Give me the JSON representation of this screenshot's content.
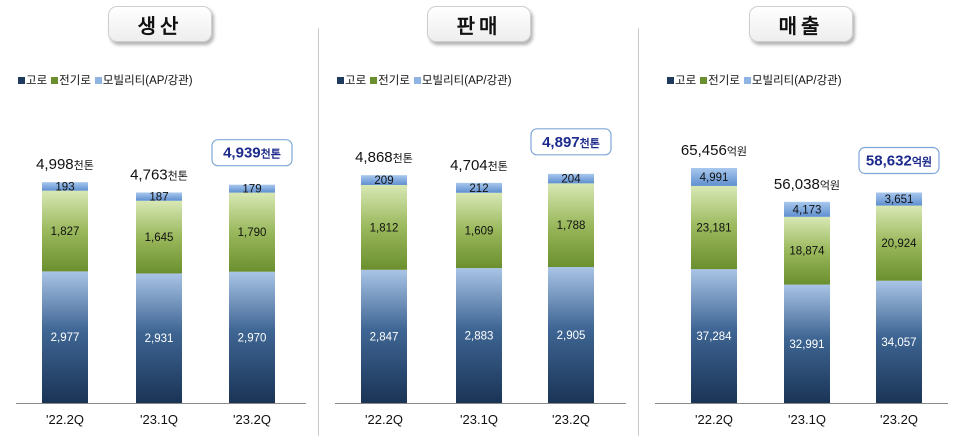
{
  "legend": {
    "items": [
      {
        "label": "고로",
        "color": "#1f3a5f"
      },
      {
        "label": "전기로",
        "color": "#6b8f2e"
      },
      {
        "label": "모빌리티(AP/강관)",
        "color": "#8eb4e3"
      }
    ]
  },
  "chart_data": [
    {
      "type": "bar",
      "title": "생산",
      "categories": [
        "'22.2Q",
        "'23.1Q",
        "'23.2Q"
      ],
      "unit": "천톤",
      "series": [
        {
          "name": "고로",
          "values": [
            2977,
            2931,
            2970
          ]
        },
        {
          "name": "전기로",
          "values": [
            1827,
            1645,
            1790
          ]
        },
        {
          "name": "모빌리티(AP/강관)",
          "values": [
            193,
            187,
            179
          ]
        }
      ],
      "value_labels": [
        [
          "2,977",
          "1,827",
          "193"
        ],
        [
          "2,931",
          "1,645",
          "187"
        ],
        [
          "2,970",
          "1,790",
          "179"
        ]
      ],
      "totals": [
        "4,998",
        "4,763",
        "4,939"
      ],
      "highlight_index": 2
    },
    {
      "type": "bar",
      "title": "판매",
      "categories": [
        "'22.2Q",
        "'23.1Q",
        "'23.2Q"
      ],
      "unit": "천톤",
      "series": [
        {
          "name": "고로",
          "values": [
            2847,
            2883,
            2905
          ]
        },
        {
          "name": "전기로",
          "values": [
            1812,
            1609,
            1788
          ]
        },
        {
          "name": "모빌리티(AP/강관)",
          "values": [
            209,
            212,
            204
          ]
        }
      ],
      "value_labels": [
        [
          "2,847",
          "1,812",
          "209"
        ],
        [
          "2,883",
          "1,609",
          "212"
        ],
        [
          "2,905",
          "1,788",
          "204"
        ]
      ],
      "totals": [
        "4,868",
        "4,704",
        "4,897"
      ],
      "highlight_index": 2
    },
    {
      "type": "bar",
      "title": "매출",
      "categories": [
        "'22.2Q",
        "'23.1Q",
        "'23.2Q"
      ],
      "unit": "억원",
      "series": [
        {
          "name": "고로",
          "values": [
            37284,
            32991,
            34057
          ]
        },
        {
          "name": "전기로",
          "values": [
            23181,
            18874,
            20924
          ]
        },
        {
          "name": "모빌리티(AP/강관)",
          "values": [
            4991,
            4173,
            3651
          ]
        }
      ],
      "value_labels": [
        [
          "37,284",
          "23,181",
          "4,991"
        ],
        [
          "32,991",
          "18,874",
          "4,173"
        ],
        [
          "34,057",
          "20,924",
          "3,651"
        ]
      ],
      "totals": [
        "65,456",
        "56,038",
        "58,632"
      ],
      "highlight_index": 2
    }
  ]
}
